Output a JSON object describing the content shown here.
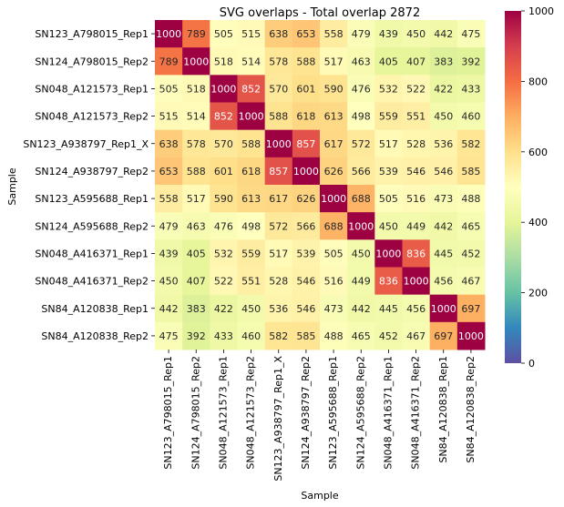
{
  "chart_data": {
    "type": "heatmap",
    "title": "SVG overlaps - Total overlap 2872",
    "xlabel": "Sample",
    "ylabel": "Sample",
    "rows": [
      "SN123_A798015_Rep1",
      "SN124_A798015_Rep2",
      "SN048_A121573_Rep1",
      "SN048_A121573_Rep2",
      "SN123_A938797_Rep1_X",
      "SN124_A938797_Rep2",
      "SN123_A595688_Rep1",
      "SN124_A595688_Rep2",
      "SN048_A416371_Rep1",
      "SN048_A416371_Rep2",
      "SN84_A120838_Rep1",
      "SN84_A120838_Rep2"
    ],
    "columns": [
      "SN123_A798015_Rep1",
      "SN124_A798015_Rep2",
      "SN048_A121573_Rep1",
      "SN048_A121573_Rep2",
      "SN123_A938797_Rep1_X",
      "SN124_A938797_Rep2",
      "SN123_A595688_Rep1",
      "SN124_A595688_Rep2",
      "SN048_A416371_Rep1",
      "SN048_A416371_Rep2",
      "SN84_A120838_Rep1",
      "SN84_A120838_Rep2"
    ],
    "values": [
      [
        1000,
        789,
        505,
        515,
        638,
        653,
        558,
        479,
        439,
        450,
        442,
        475
      ],
      [
        789,
        1000,
        518,
        514,
        578,
        588,
        517,
        463,
        405,
        407,
        383,
        392
      ],
      [
        505,
        518,
        1000,
        852,
        570,
        601,
        590,
        476,
        532,
        522,
        422,
        433
      ],
      [
        515,
        514,
        852,
        1000,
        588,
        618,
        613,
        498,
        559,
        551,
        450,
        460
      ],
      [
        638,
        578,
        570,
        588,
        1000,
        857,
        617,
        572,
        517,
        528,
        536,
        582
      ],
      [
        653,
        588,
        601,
        618,
        857,
        1000,
        626,
        566,
        539,
        546,
        546,
        585
      ],
      [
        558,
        517,
        590,
        613,
        617,
        626,
        1000,
        688,
        505,
        516,
        473,
        488
      ],
      [
        479,
        463,
        476,
        498,
        572,
        566,
        688,
        1000,
        450,
        449,
        442,
        465
      ],
      [
        439,
        405,
        532,
        559,
        517,
        539,
        505,
        450,
        1000,
        836,
        445,
        452
      ],
      [
        450,
        407,
        522,
        551,
        528,
        546,
        516,
        449,
        836,
        1000,
        456,
        467
      ],
      [
        442,
        383,
        422,
        450,
        536,
        546,
        473,
        442,
        445,
        456,
        1000,
        697
      ],
      [
        475,
        392,
        433,
        460,
        582,
        585,
        488,
        465,
        452,
        467,
        697,
        1000
      ]
    ],
    "colorbar": {
      "min": 0,
      "max": 1000,
      "ticks": [
        "0",
        "200",
        "400",
        "600",
        "800",
        "1000"
      ]
    },
    "colormap": "Spectral_r",
    "grid": false
  }
}
